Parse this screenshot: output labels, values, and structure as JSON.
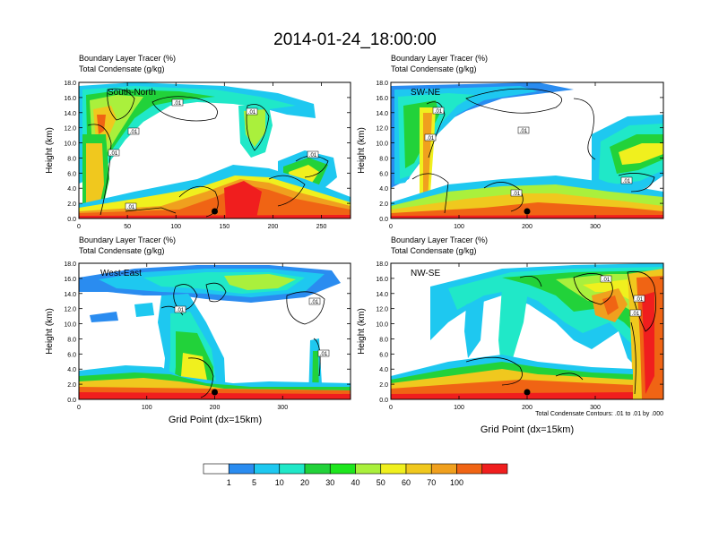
{
  "title": "2014-01-24_18:00:00",
  "colorbar": {
    "colors": [
      "#ffffff",
      "#2a8cf0",
      "#1ec8f0",
      "#20e8c8",
      "#22d23a",
      "#1ee61e",
      "#aaf03c",
      "#f0f01e",
      "#f0c81e",
      "#f0a01e",
      "#f06414",
      "#f01e1e"
    ],
    "labels": [
      "1",
      "5",
      "10",
      "20",
      "30",
      "40",
      "50",
      "60",
      "70",
      "100"
    ]
  },
  "contour_note": "Total Condensate Contours: .01 to .01 by .000",
  "chart_data": [
    {
      "type": "heatmap",
      "panel_label": "South-North",
      "title_lines": [
        "Boundary Layer Tracer   (%)",
        "Total Condensate   (g/kg)"
      ],
      "ylabel": "Height (km)",
      "xlabel": "",
      "ylim": [
        0,
        18
      ],
      "xlim": [
        0,
        280
      ],
      "yticks": [
        "0.0",
        "2.0",
        "4.0",
        "6.0",
        "8.0",
        "10.0",
        "12.0",
        "14.0",
        "16.0",
        "18.0"
      ],
      "xticks": [
        "0",
        "50",
        "100",
        "150",
        "200",
        "250"
      ],
      "xtick_values": [
        0,
        50,
        100,
        150,
        200,
        250
      ],
      "contour_labels": [
        ".01",
        ".01",
        ".01",
        ".01",
        ".01",
        ".01"
      ],
      "marker_x": 140
    },
    {
      "type": "heatmap",
      "panel_label": "SW-NE",
      "title_lines": [
        "Boundary Layer Tracer   (%)",
        "Total Condensate   (g/kg)"
      ],
      "ylabel": "Height (km)",
      "xlabel": "",
      "ylim": [
        0,
        18
      ],
      "xlim": [
        0,
        400
      ],
      "yticks": [
        "0.0",
        "2.0",
        "4.0",
        "6.0",
        "8.0",
        "10.0",
        "12.0",
        "14.0",
        "16.0",
        "18.0"
      ],
      "xticks": [
        "0",
        "100",
        "200",
        "300"
      ],
      "xtick_values": [
        0,
        100,
        200,
        300
      ],
      "contour_labels": [
        ".01",
        ".01",
        ".01",
        ".01",
        ".01"
      ],
      "marker_x": 200
    },
    {
      "type": "heatmap",
      "panel_label": "West-East",
      "title_lines": [
        "Boundary Layer Tracer   (%)",
        "Total Condensate   (g/kg)"
      ],
      "ylabel": "Height (km)",
      "xlabel": "Grid Point (dx=15km)",
      "ylim": [
        0,
        18
      ],
      "xlim": [
        0,
        400
      ],
      "yticks": [
        "0.0",
        "2.0",
        "4.0",
        "6.0",
        "8.0",
        "10.0",
        "12.0",
        "14.0",
        "16.0",
        "18.0"
      ],
      "xticks": [
        "0",
        "100",
        "200",
        "300"
      ],
      "xtick_values": [
        0,
        100,
        200,
        300
      ],
      "contour_labels": [
        ".01",
        ".01",
        ".01"
      ],
      "marker_x": 200
    },
    {
      "type": "heatmap",
      "panel_label": "NW-SE",
      "title_lines": [
        "Boundary Layer Tracer   (%)",
        "Total Condensate   (g/kg)"
      ],
      "ylabel": "Height (km)",
      "xlabel": "Grid Point (dx=15km)",
      "ylim": [
        0,
        18
      ],
      "xlim": [
        0,
        400
      ],
      "yticks": [
        "0.0",
        "2.0",
        "4.0",
        "6.0",
        "8.0",
        "10.0",
        "12.0",
        "14.0",
        "16.0",
        "18.0"
      ],
      "xticks": [
        "0",
        "100",
        "200",
        "300"
      ],
      "xtick_values": [
        0,
        100,
        200,
        300
      ],
      "contour_labels": [
        ".01",
        ".01",
        ".01"
      ],
      "marker_x": 200
    }
  ]
}
